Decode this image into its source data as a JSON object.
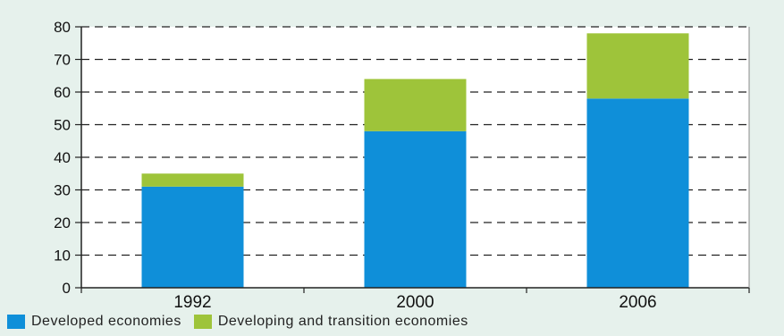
{
  "chart_data": {
    "type": "bar",
    "stacked": true,
    "categories": [
      "1992",
      "2000",
      "2006"
    ],
    "series": [
      {
        "name": "Developed economies",
        "values": [
          31,
          48,
          58
        ],
        "color": "#0f8fd9"
      },
      {
        "name": "Developing and transition economies",
        "values": [
          4,
          16,
          20
        ],
        "color": "#9ec43a"
      }
    ],
    "ylim": [
      0,
      80
    ],
    "yticks": [
      "0",
      "10",
      "20",
      "30",
      "40",
      "50",
      "60",
      "70",
      "80"
    ],
    "grid": "dashed horizontal",
    "legend_position": "bottom",
    "background_color": "#e6f1ec"
  }
}
